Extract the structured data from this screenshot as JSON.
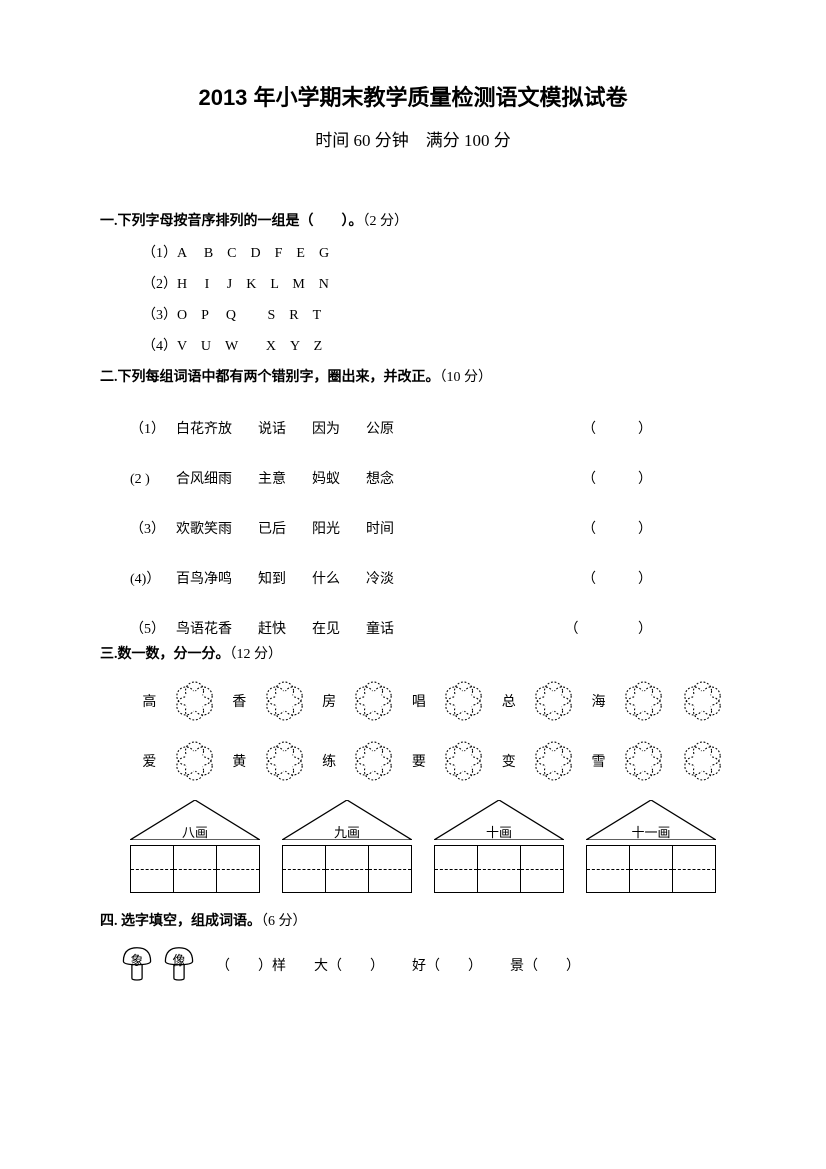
{
  "title": "2013 年小学期末教学质量检测语文模拟试卷",
  "subtitle": "时间 60 分钟　满分 100 分",
  "q1": {
    "head": "一.下列字母按音序排列的一组是（　　）。",
    "points": "（2 分）",
    "rows": [
      "（1）A　 B　C　D　F　E　G",
      "（2）H　 I　 J　K　L　M　N",
      "（3）O　P　 Q　　 S　R　T",
      "（4）V　U　W　　X　Y　Z"
    ]
  },
  "q2": {
    "head": "二.下列每组词语中都有两个错别字，圈出来，并改正。",
    "points": "（10 分）",
    "rows": [
      {
        "num": "（1）",
        "words": [
          "白花齐放",
          "说话",
          "因为",
          "公原"
        ],
        "blank": "（　）"
      },
      {
        "num": "(2 )",
        "words": [
          "合风细雨",
          "主意",
          "妈蚁",
          "想念"
        ],
        "blank": "（　）"
      },
      {
        "num": "（3）",
        "words": [
          "欢歌笑雨",
          "已后",
          "阳光",
          "时间"
        ],
        "blank": "（　）"
      },
      {
        "num": "(4)）",
        "words": [
          "百鸟净鸣",
          "知到",
          "什么",
          "冷淡"
        ],
        "blank": "（　）"
      },
      {
        "num": "（5）",
        "words": [
          "鸟语花香",
          "赶快",
          "在见",
          "童话"
        ],
        "blank": "（　 ）"
      }
    ]
  },
  "q3": {
    "head": "三.数一数，分一分。",
    "points": "（12 分）",
    "row1_chars": [
      "高",
      "",
      "香",
      "",
      "房",
      "",
      "唱",
      "",
      "总",
      "",
      "海",
      "",
      ""
    ],
    "row2_chars": [
      "爱",
      "",
      "黄",
      "",
      "练",
      "",
      "要",
      "",
      "变",
      "",
      "雪",
      "",
      ""
    ],
    "houses": [
      "八画",
      "九画",
      "十画",
      "十一画"
    ]
  },
  "q4": {
    "head": "四. 选字填空，组成词语。",
    "points": "（6 分）",
    "mushroom_chars": [
      "象",
      "像"
    ],
    "items": [
      "（　　）样",
      "大（　　）",
      "好（　　）",
      "景（　　）"
    ]
  },
  "colors": {
    "text": "#000000",
    "background": "#ffffff",
    "stroke": "#000000"
  }
}
